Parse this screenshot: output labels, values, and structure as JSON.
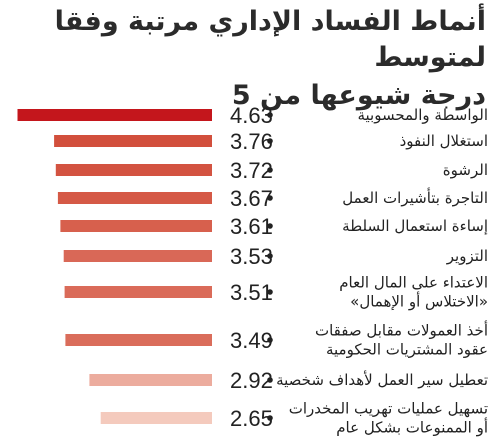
{
  "title_line1": "أنماط الفساد الإداري مرتبة وفقا لمتوسط",
  "title_line2": "درجة شيوعها من 5",
  "chart_data": {
    "type": "bar",
    "orientation": "horizontal",
    "title": "أنماط الفساد الإداري مرتبة وفقا لمتوسط درجة شيوعها من 5",
    "xlabel": "",
    "ylabel": "",
    "xlim": [
      0,
      5
    ],
    "grid": false,
    "legend": "none",
    "categories": [
      [
        "الواسطة والمحسوبية"
      ],
      [
        "استغلال النفوذ"
      ],
      [
        "الرشوة"
      ],
      [
        "التاجرة بتأشيرات العمل"
      ],
      [
        "إساءة استعمال السلطة"
      ],
      [
        "التزوير"
      ],
      [
        "الاعتداء على المال العام",
        "«الاختلاس أو الإهمال»"
      ],
      [
        "أخذ العمولات مقابل صفقات",
        "عقود المشتريات الحكومية"
      ],
      [
        "تعطيل سير العمل لأهداف شخصية"
      ],
      [
        "تسهيل عمليات تهريب المخدرات",
        "أو الممنوعات بشكل عام"
      ]
    ],
    "values": [
      4.63,
      3.76,
      3.72,
      3.67,
      3.61,
      3.53,
      3.51,
      3.49,
      2.92,
      2.65
    ],
    "value_labels": [
      "4.63",
      "3.76",
      "3.72",
      "3.67",
      "3.61",
      "3.53",
      "3.51",
      "3.49",
      "2.92",
      "2.65"
    ],
    "colors": {
      "top_bar": "#c4161c",
      "high": "#d24f3c",
      "mid": "#e58c72",
      "low": "#f4cabd",
      "text": "#222222"
    }
  }
}
